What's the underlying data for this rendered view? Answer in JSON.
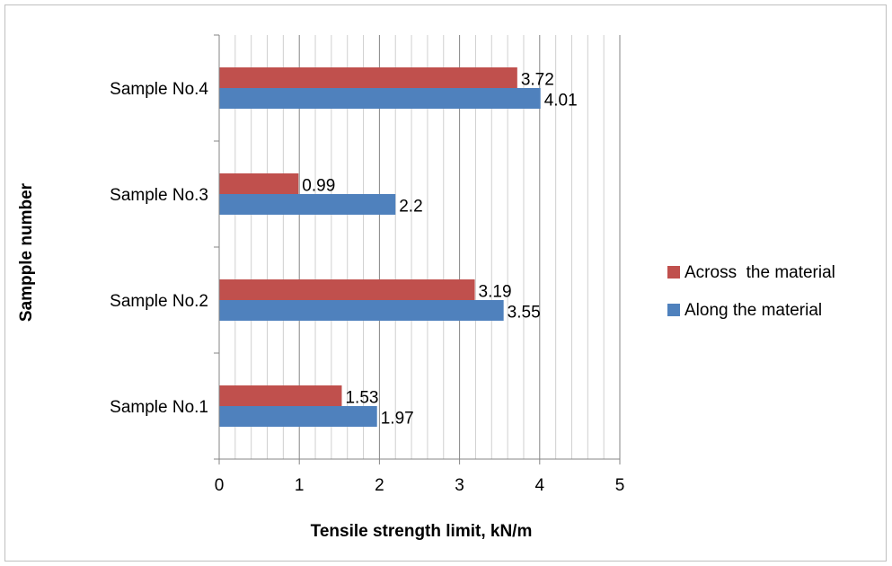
{
  "chart_data": {
    "type": "bar",
    "orientation": "horizontal",
    "categories": [
      "Sample No.1",
      "Sample No.2",
      "Sample No.3",
      "Sample No.4"
    ],
    "series": [
      {
        "name": "Along the material",
        "color": "#4f81bd",
        "values": [
          1.97,
          3.55,
          2.2,
          4.01
        ],
        "labels": [
          "1.97",
          "3.55",
          "2.2",
          "4.01"
        ]
      },
      {
        "name": "Across  the material",
        "color": "#c0504d",
        "values": [
          1.53,
          3.19,
          0.99,
          3.72
        ],
        "labels": [
          "1.53",
          "3.19",
          "0.99",
          "3.72"
        ]
      }
    ],
    "xlabel": "Tensile strength limit, kN/m",
    "ylabel": "Sampple number",
    "xlim": [
      0,
      5
    ],
    "xticks": [
      "0",
      "1",
      "2",
      "3",
      "4",
      "5"
    ],
    "grid": "vertical major and minor",
    "legend": "right"
  }
}
